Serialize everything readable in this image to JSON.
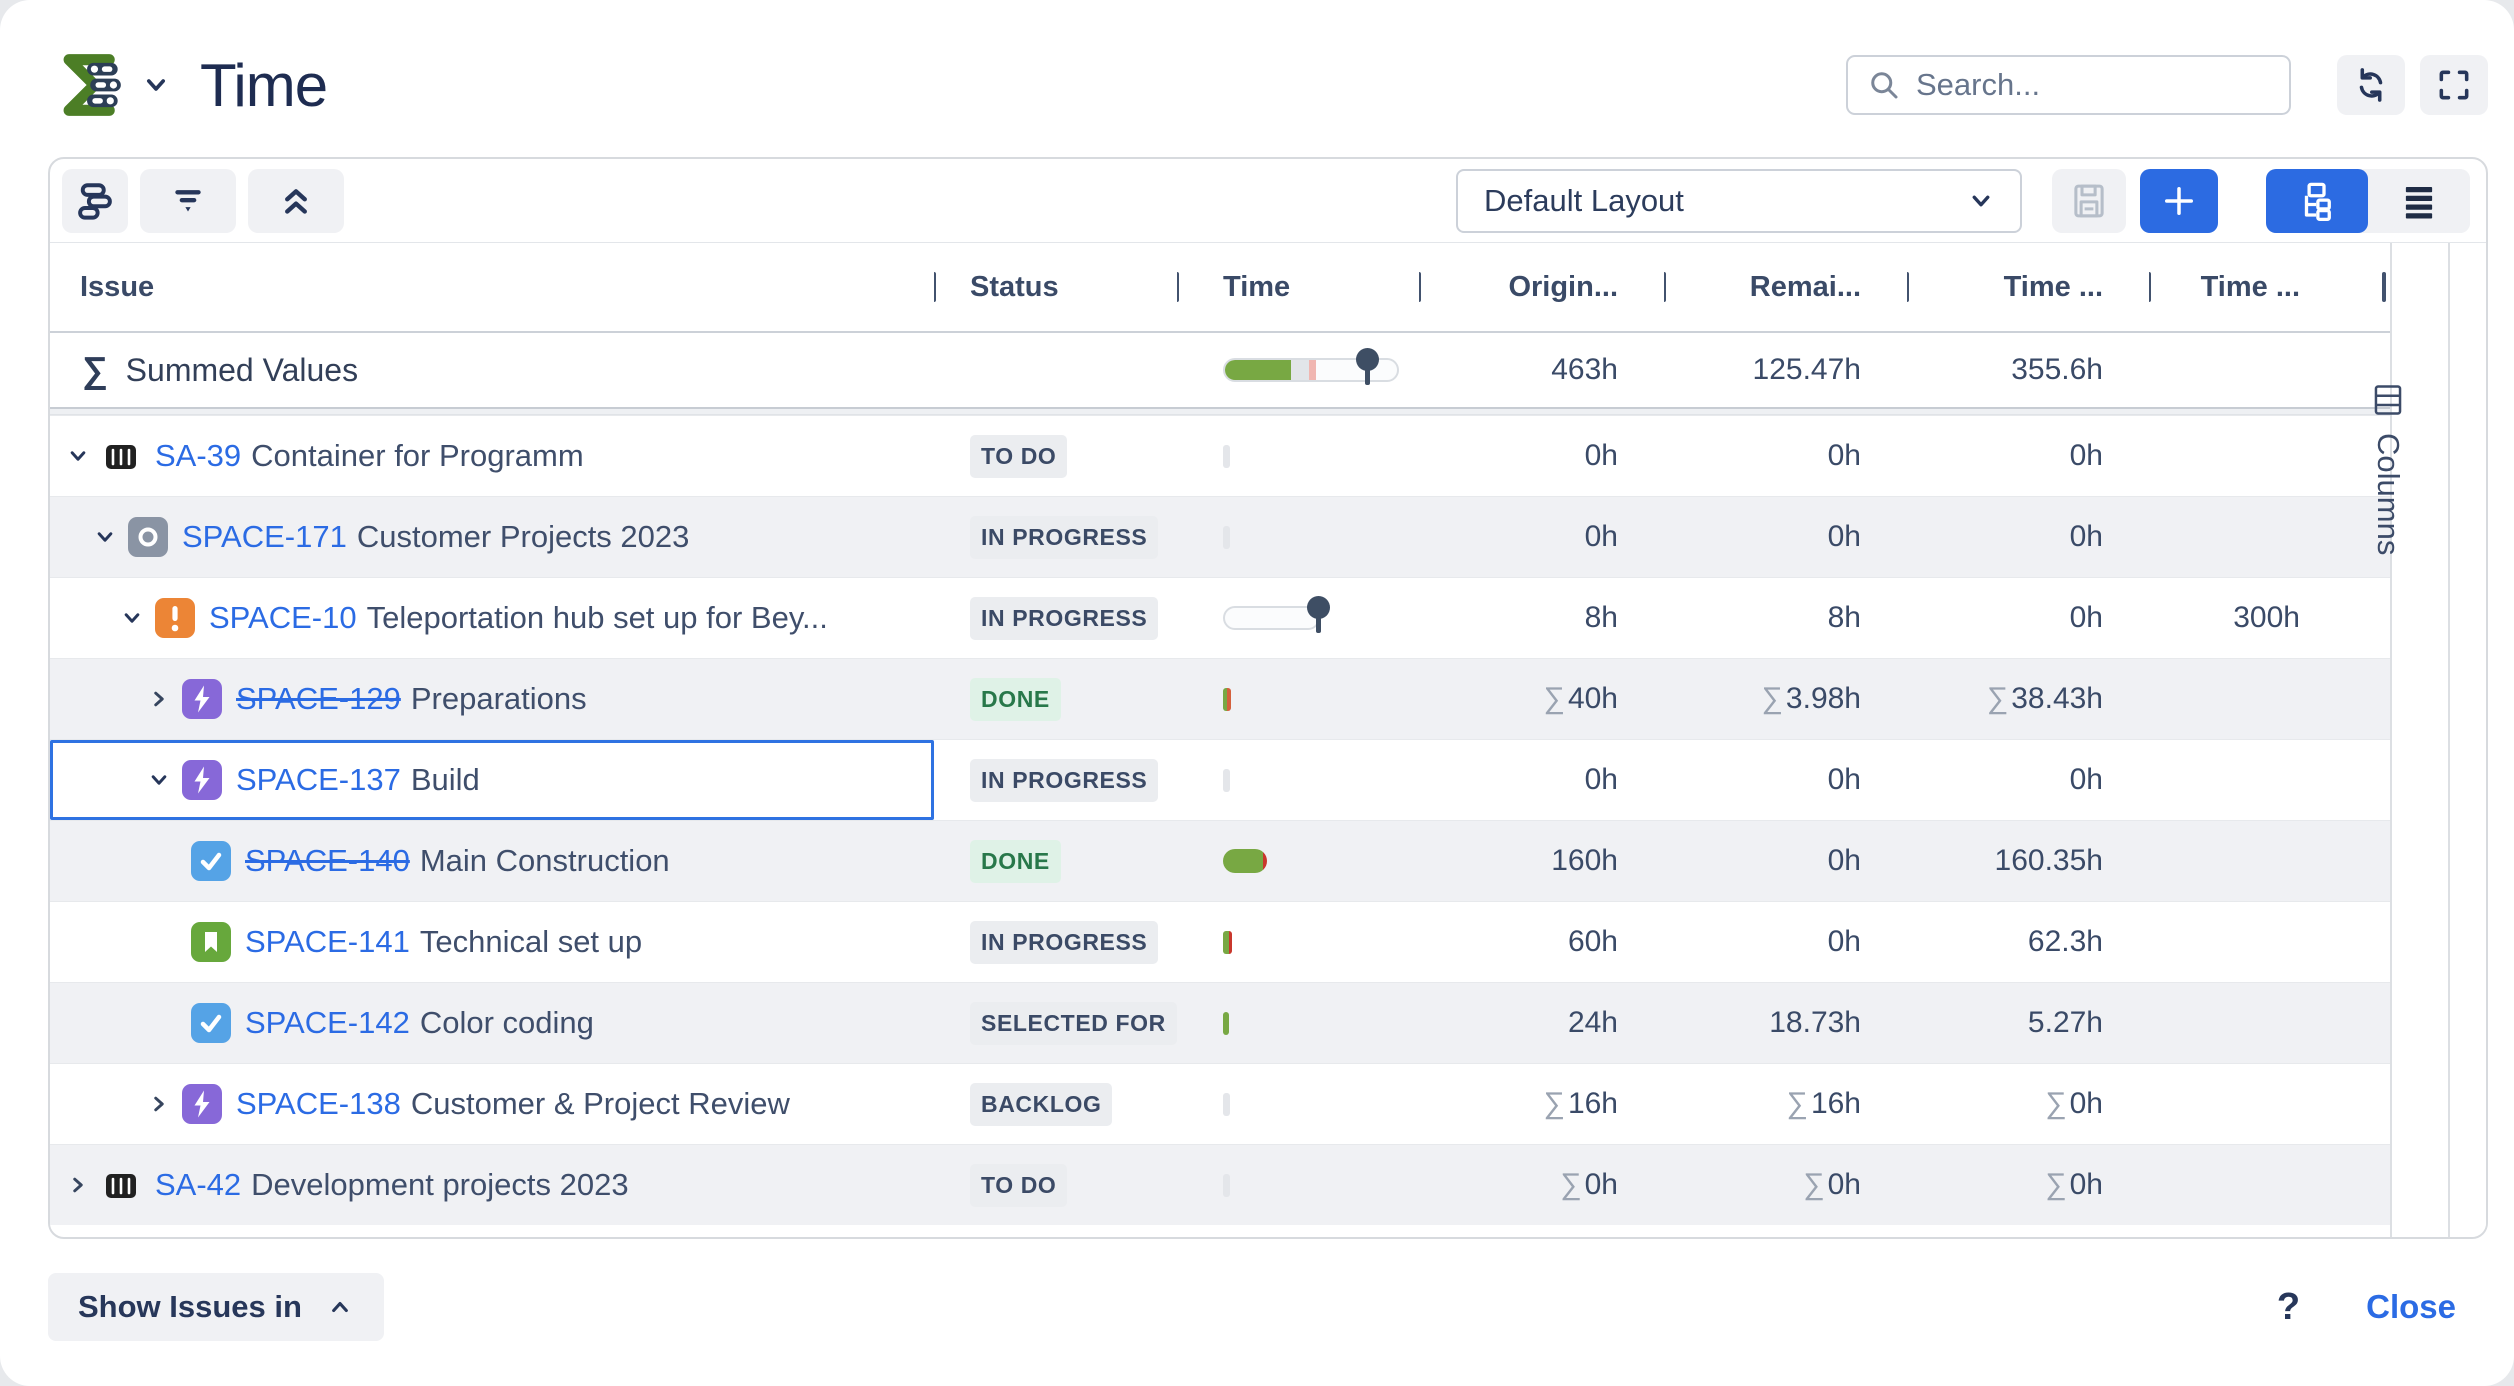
{
  "header": {
    "logo_icon": "sum-up-logo",
    "logo_menu_icon": "chevron-down-icon",
    "title": "Time",
    "search": {
      "placeholder": "Search...",
      "icon": "search-icon"
    },
    "refresh_icon": "refresh-icon",
    "fullscreen_icon": "fullscreen-icon"
  },
  "toolbar": {
    "left_buttons": [
      {
        "icon": "layout-bars-icon"
      },
      {
        "icon": "filter-icon"
      },
      {
        "icon": "collapse-all-icon"
      }
    ],
    "layout_select": {
      "value": "Default Layout",
      "chevron_icon": "chevron-down-icon"
    },
    "save_icon": "save-icon",
    "add_icon": "plus-icon",
    "view_toggle": [
      {
        "icon": "hierarchy-icon",
        "active": true
      },
      {
        "icon": "menu-icon",
        "active": false
      }
    ]
  },
  "table": {
    "columns": [
      {
        "label": "Issue",
        "align": "left"
      },
      {
        "label": "Status",
        "align": "left"
      },
      {
        "label": "Time",
        "align": "left"
      },
      {
        "label": "Origin...",
        "align": "right"
      },
      {
        "label": "Remai...",
        "align": "right"
      },
      {
        "label": "Time ...",
        "align": "right"
      },
      {
        "label": "Time ...",
        "align": "right"
      }
    ],
    "summed_row": {
      "sigma": "∑",
      "label": "Summed Values",
      "bar": {
        "kind": "segments",
        "track_width": 176,
        "segments": [
          {
            "color": "#78a843",
            "width": 66
          },
          {
            "color": "#e2e5e9",
            "width": 18
          },
          {
            "color": "#f0b6b1",
            "width": 7
          }
        ],
        "pin": 144
      },
      "values": [
        {
          "sigma": false,
          "text": "463h"
        },
        {
          "sigma": false,
          "text": "125.47h"
        },
        {
          "sigma": false,
          "text": "355.6h"
        },
        {
          "sigma": false,
          "text": ""
        }
      ]
    },
    "rows": [
      {
        "level": 0,
        "chevron": "down",
        "type_icon": "container-icon",
        "key": "SA-39",
        "strike": false,
        "summary": "Container for Programm",
        "status": {
          "label": "TO DO",
          "variant": "gray"
        },
        "bar": {
          "kind": "tick",
          "segments": [
            {
              "color": "#e4e6ea",
              "width": 7
            }
          ]
        },
        "values": [
          {
            "sigma": false,
            "text": "0h"
          },
          {
            "sigma": false,
            "text": "0h"
          },
          {
            "sigma": false,
            "text": "0h"
          },
          {
            "sigma": false,
            "text": ""
          }
        ],
        "zebra": false,
        "selected": false
      },
      {
        "level": 1,
        "chevron": "down",
        "type_icon": "circle-icon",
        "key": "SPACE-171",
        "strike": false,
        "summary": "Customer Projects 2023",
        "status": {
          "label": "IN PROGRESS",
          "variant": "gray"
        },
        "bar": {
          "kind": "tick",
          "segments": [
            {
              "color": "#e4e6ea",
              "width": 7
            }
          ]
        },
        "values": [
          {
            "sigma": false,
            "text": "0h"
          },
          {
            "sigma": false,
            "text": "0h"
          },
          {
            "sigma": false,
            "text": "0h"
          },
          {
            "sigma": false,
            "text": ""
          }
        ],
        "zebra": true,
        "selected": false
      },
      {
        "level": 2,
        "chevron": "down",
        "type_icon": "exclamation-icon",
        "key": "SPACE-10",
        "strike": false,
        "summary": "Teleportation hub set up for Bey...",
        "status": {
          "label": "IN PROGRESS",
          "variant": "gray"
        },
        "bar": {
          "kind": "track",
          "track_width": 97,
          "pin": 95
        },
        "values": [
          {
            "sigma": false,
            "text": "8h"
          },
          {
            "sigma": false,
            "text": "8h"
          },
          {
            "sigma": false,
            "text": "0h"
          },
          {
            "sigma": false,
            "text": "300h"
          }
        ],
        "zebra": false,
        "selected": false
      },
      {
        "level": 3,
        "chevron": "right",
        "type_icon": "epic-icon",
        "key": "SPACE-129",
        "strike": true,
        "summary": "Preparations",
        "status": {
          "label": "DONE",
          "variant": "green"
        },
        "bar": {
          "kind": "tick",
          "segments": [
            {
              "color": "#78a843",
              "width": 4
            },
            {
              "color": "#d4603c",
              "width": 4
            }
          ]
        },
        "values": [
          {
            "sigma": true,
            "text": "40h"
          },
          {
            "sigma": true,
            "text": "3.98h"
          },
          {
            "sigma": true,
            "text": "38.43h"
          },
          {
            "sigma": false,
            "text": ""
          }
        ],
        "zebra": true,
        "selected": false
      },
      {
        "level": 3,
        "chevron": "down",
        "type_icon": "epic-icon",
        "key": "SPACE-137",
        "strike": false,
        "summary": "Build",
        "status": {
          "label": "IN PROGRESS",
          "variant": "gray"
        },
        "bar": {
          "kind": "tick",
          "segments": [
            {
              "color": "#e4e6ea",
              "width": 7
            }
          ]
        },
        "values": [
          {
            "sigma": false,
            "text": "0h"
          },
          {
            "sigma": false,
            "text": "0h"
          },
          {
            "sigma": false,
            "text": "0h"
          },
          {
            "sigma": false,
            "text": ""
          }
        ],
        "zebra": false,
        "selected": true
      },
      {
        "level": 4,
        "chevron": "none",
        "type_icon": "task-icon",
        "key": "SPACE-140",
        "strike": true,
        "summary": "Main Construction",
        "status": {
          "label": "DONE",
          "variant": "green"
        },
        "bar": {
          "kind": "pill",
          "segments": [
            {
              "color": "#78a843",
              "width": 40
            },
            {
              "color": "#c9372c",
              "width": 4
            }
          ]
        },
        "values": [
          {
            "sigma": false,
            "text": "160h"
          },
          {
            "sigma": false,
            "text": "0h"
          },
          {
            "sigma": false,
            "text": "160.35h"
          },
          {
            "sigma": false,
            "text": ""
          }
        ],
        "zebra": true,
        "selected": false
      },
      {
        "level": 4,
        "chevron": "none",
        "type_icon": "story-icon",
        "key": "SPACE-141",
        "strike": false,
        "summary": "Technical set up",
        "status": {
          "label": "IN PROGRESS",
          "variant": "gray"
        },
        "bar": {
          "kind": "tick",
          "segments": [
            {
              "color": "#78a843",
              "width": 6
            },
            {
              "color": "#c9372c",
              "width": 3
            }
          ]
        },
        "values": [
          {
            "sigma": false,
            "text": "60h"
          },
          {
            "sigma": false,
            "text": "0h"
          },
          {
            "sigma": false,
            "text": "62.3h"
          },
          {
            "sigma": false,
            "text": ""
          }
        ],
        "zebra": false,
        "selected": false
      },
      {
        "level": 4,
        "chevron": "none",
        "type_icon": "task-icon",
        "key": "SPACE-142",
        "strike": false,
        "summary": "Color coding",
        "status": {
          "label": "SELECTED FOR",
          "variant": "gray"
        },
        "bar": {
          "kind": "tick",
          "segments": [
            {
              "color": "#78a843",
              "width": 6
            }
          ]
        },
        "values": [
          {
            "sigma": false,
            "text": "24h"
          },
          {
            "sigma": false,
            "text": "18.73h"
          },
          {
            "sigma": false,
            "text": "5.27h"
          },
          {
            "sigma": false,
            "text": ""
          }
        ],
        "zebra": true,
        "selected": false
      },
      {
        "level": 3,
        "chevron": "right",
        "type_icon": "epic-icon",
        "key": "SPACE-138",
        "strike": false,
        "summary": "Customer & Project Review",
        "status": {
          "label": "BACKLOG",
          "variant": "gray"
        },
        "bar": {
          "kind": "tick",
          "segments": [
            {
              "color": "#e4e6ea",
              "width": 7
            }
          ]
        },
        "values": [
          {
            "sigma": true,
            "text": "16h"
          },
          {
            "sigma": true,
            "text": "16h"
          },
          {
            "sigma": true,
            "text": "0h"
          },
          {
            "sigma": false,
            "text": ""
          }
        ],
        "zebra": false,
        "selected": false
      },
      {
        "level": 0,
        "chevron": "right",
        "type_icon": "container-icon",
        "key": "SA-42",
        "strike": false,
        "summary": "Development projects 2023",
        "status": {
          "label": "TO DO",
          "variant": "gray"
        },
        "bar": {
          "kind": "tick",
          "segments": [
            {
              "color": "#e4e6ea",
              "width": 7
            }
          ]
        },
        "values": [
          {
            "sigma": true,
            "text": "0h"
          },
          {
            "sigma": true,
            "text": "0h"
          },
          {
            "sigma": true,
            "text": "0h"
          },
          {
            "sigma": false,
            "text": ""
          }
        ],
        "zebra": true,
        "selected": false
      }
    ]
  },
  "columns_panel": {
    "icon": "columns-icon",
    "label": "Columns"
  },
  "footer": {
    "show_issues": {
      "label": "Show Issues in",
      "icon": "chevron-up-icon"
    },
    "help": "?",
    "close": "Close"
  },
  "colors": {
    "accent_blue": "#2c6be2",
    "link_blue": "#2b6be4",
    "bar_green": "#78a843",
    "bar_red": "#c9372c",
    "bar_pink": "#f0b6b1",
    "pin_navy": "#3e4e64",
    "badge_gray_bg": "#ebedf0",
    "badge_green_bg": "#dff2e7",
    "badge_green_text": "#28784a",
    "zebra_row": "#f0f1f4",
    "logo_green": "#4c7e26"
  }
}
